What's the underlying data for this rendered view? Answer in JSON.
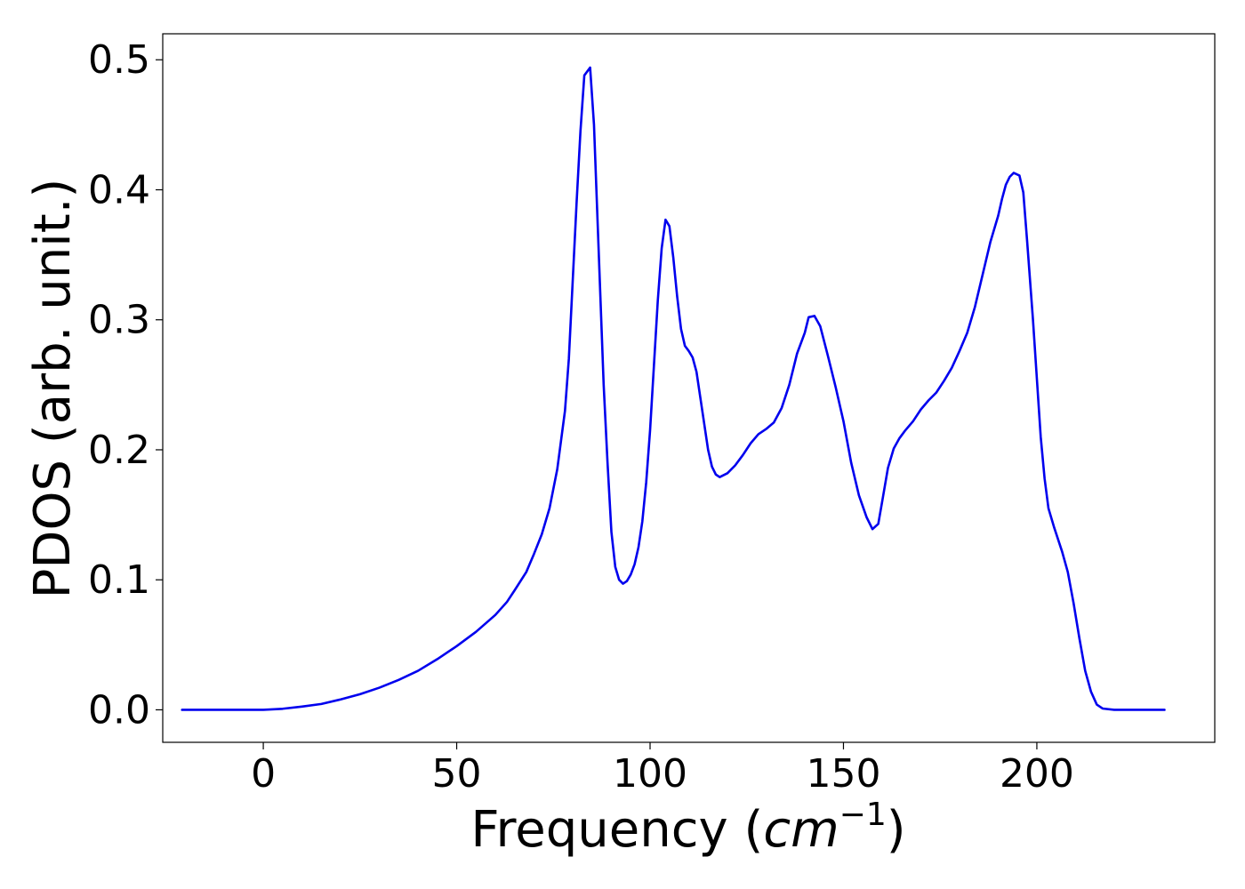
{
  "chart_data": {
    "type": "line",
    "xlabel": "Frequency (",
    "xlabel_math": "cm",
    "xlabel_exp": "−1",
    "xlabel_close": ")",
    "ylabel": "PDOS (arb. unit.)",
    "xlim": [
      -26,
      246
    ],
    "ylim": [
      -0.025,
      0.52
    ],
    "x_ticks": [
      0,
      50,
      100,
      150,
      200
    ],
    "x_tick_labels": [
      "0",
      "50",
      "100",
      "150",
      "200"
    ],
    "y_ticks": [
      0.0,
      0.1,
      0.2,
      0.3,
      0.4,
      0.5
    ],
    "y_tick_labels": [
      "0.0",
      "0.1",
      "0.2",
      "0.3",
      "0.4",
      "0.5"
    ],
    "grid": false,
    "legend": "none",
    "series": [
      {
        "color": "#0000ee",
        "points": [
          [
            -21,
            0.0
          ],
          [
            0,
            0.0
          ],
          [
            5,
            0.0008
          ],
          [
            10,
            0.0025
          ],
          [
            15,
            0.0045
          ],
          [
            20,
            0.008
          ],
          [
            25,
            0.012
          ],
          [
            30,
            0.017
          ],
          [
            35,
            0.023
          ],
          [
            40,
            0.03
          ],
          [
            45,
            0.039
          ],
          [
            50,
            0.049
          ],
          [
            55,
            0.06
          ],
          [
            60,
            0.073
          ],
          [
            63,
            0.083
          ],
          [
            65,
            0.092
          ],
          [
            68,
            0.106
          ],
          [
            70,
            0.12
          ],
          [
            72,
            0.135
          ],
          [
            74,
            0.155
          ],
          [
            76,
            0.185
          ],
          [
            78,
            0.23
          ],
          [
            79,
            0.27
          ],
          [
            80,
            0.33
          ],
          [
            81,
            0.39
          ],
          [
            82,
            0.445
          ],
          [
            83,
            0.488
          ],
          [
            84.5,
            0.494
          ],
          [
            85.5,
            0.45
          ],
          [
            86.5,
            0.37
          ],
          [
            88,
            0.25
          ],
          [
            89,
            0.19
          ],
          [
            90,
            0.137
          ],
          [
            91,
            0.11
          ],
          [
            92,
            0.1
          ],
          [
            93,
            0.097
          ],
          [
            94,
            0.099
          ],
          [
            95,
            0.104
          ],
          [
            96,
            0.112
          ],
          [
            97,
            0.125
          ],
          [
            98,
            0.145
          ],
          [
            99,
            0.175
          ],
          [
            100,
            0.215
          ],
          [
            101,
            0.265
          ],
          [
            102,
            0.315
          ],
          [
            103,
            0.355
          ],
          [
            104,
            0.377
          ],
          [
            105,
            0.372
          ],
          [
            106,
            0.348
          ],
          [
            107,
            0.318
          ],
          [
            108,
            0.293
          ],
          [
            109,
            0.28
          ],
          [
            110,
            0.276
          ],
          [
            111,
            0.271
          ],
          [
            112,
            0.26
          ],
          [
            113,
            0.24
          ],
          [
            115,
            0.2
          ],
          [
            116,
            0.187
          ],
          [
            117,
            0.181
          ],
          [
            118,
            0.179
          ],
          [
            120,
            0.182
          ],
          [
            122,
            0.188
          ],
          [
            124,
            0.196
          ],
          [
            126,
            0.205
          ],
          [
            128,
            0.212
          ],
          [
            130,
            0.216
          ],
          [
            132,
            0.221
          ],
          [
            134,
            0.232
          ],
          [
            136,
            0.25
          ],
          [
            138,
            0.274
          ],
          [
            140,
            0.29
          ],
          [
            141,
            0.302
          ],
          [
            142.5,
            0.303
          ],
          [
            144,
            0.295
          ],
          [
            146,
            0.272
          ],
          [
            148,
            0.248
          ],
          [
            150,
            0.222
          ],
          [
            152,
            0.19
          ],
          [
            154,
            0.165
          ],
          [
            156,
            0.148
          ],
          [
            157.5,
            0.139
          ],
          [
            159,
            0.143
          ],
          [
            160,
            0.16
          ],
          [
            161.5,
            0.186
          ],
          [
            163,
            0.201
          ],
          [
            164.5,
            0.209
          ],
          [
            166,
            0.215
          ],
          [
            168,
            0.222
          ],
          [
            170,
            0.231
          ],
          [
            172,
            0.238
          ],
          [
            174,
            0.244
          ],
          [
            176,
            0.253
          ],
          [
            178,
            0.263
          ],
          [
            180,
            0.276
          ],
          [
            182,
            0.29
          ],
          [
            184,
            0.31
          ],
          [
            186,
            0.335
          ],
          [
            188,
            0.36
          ],
          [
            190,
            0.38
          ],
          [
            191,
            0.393
          ],
          [
            192,
            0.404
          ],
          [
            193,
            0.41
          ],
          [
            194,
            0.413
          ],
          [
            195.5,
            0.411
          ],
          [
            196.5,
            0.398
          ],
          [
            197.5,
            0.36
          ],
          [
            199,
            0.3
          ],
          [
            201,
            0.21
          ],
          [
            202,
            0.178
          ],
          [
            203,
            0.155
          ],
          [
            204.5,
            0.14
          ],
          [
            206.5,
            0.122
          ],
          [
            208,
            0.106
          ],
          [
            209.5,
            0.082
          ],
          [
            211,
            0.055
          ],
          [
            212.5,
            0.03
          ],
          [
            214,
            0.014
          ],
          [
            215.5,
            0.004
          ],
          [
            217,
            0.001
          ],
          [
            220,
            0.0
          ],
          [
            233,
            0.0
          ]
        ]
      }
    ]
  }
}
